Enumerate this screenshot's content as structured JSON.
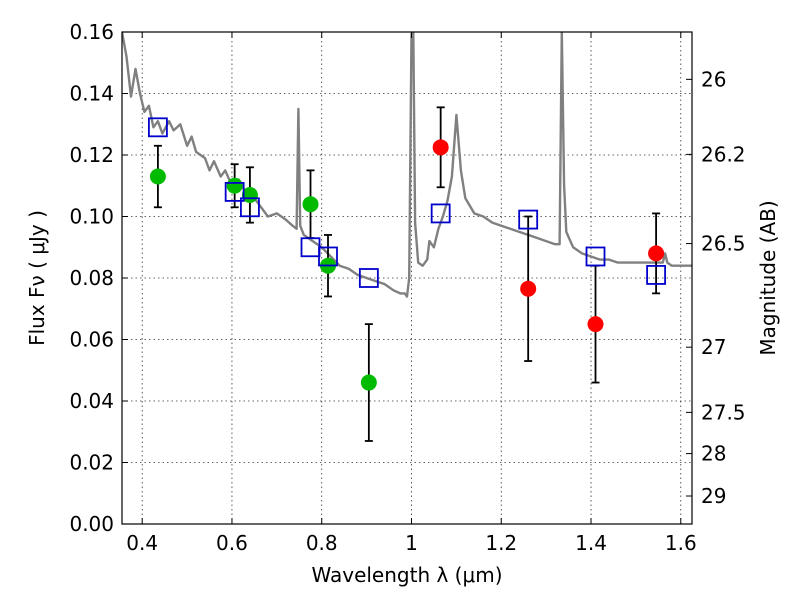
{
  "chart_data": {
    "type": "scatter",
    "xlabel": "Wavelength  λ (μm)",
    "ylabel": "Flux  Fν  ( μJy )",
    "y2label": "Magnitude (AB)",
    "xlim": [
      0.355,
      1.625
    ],
    "ylim": [
      0.0,
      0.16
    ],
    "x_ticks": [
      0.4,
      0.6,
      0.8,
      1.0,
      1.2,
      1.4,
      1.6
    ],
    "x_tick_labels": [
      "0.4",
      "0.6",
      "0.8",
      "1",
      "1.2",
      "1.4",
      "1.6"
    ],
    "y_ticks": [
      0.0,
      0.02,
      0.04,
      0.06,
      0.08,
      0.1,
      0.12,
      0.14,
      0.16
    ],
    "y_tick_labels": [
      "0.00",
      "0.02",
      "0.04",
      "0.06",
      "0.08",
      "0.10",
      "0.12",
      "0.14",
      "0.16"
    ],
    "y2_ticks": [
      {
        "label": "26",
        "flux": 0.1446
      },
      {
        "label": "26.2",
        "flux": 0.1202
      },
      {
        "label": "26.5",
        "flux": 0.0912
      },
      {
        "label": "27",
        "flux": 0.0575
      },
      {
        "label": "27.5",
        "flux": 0.0363
      },
      {
        "label": "28",
        "flux": 0.0229
      },
      {
        "label": "29",
        "flux": 0.0091
      }
    ],
    "grid": true,
    "colors": {
      "green": "#00bb00",
      "red": "#ff0000",
      "model_box": "#0000cc",
      "sed": "#808080",
      "errorbar": "#000000"
    },
    "series": [
      {
        "marker": "circle-green",
        "x": [
          0.435,
          0.606,
          0.64,
          0.775,
          0.814,
          0.905
        ],
        "y": [
          0.113,
          0.11,
          0.107,
          0.104,
          0.084,
          0.046
        ],
        "err": [
          0.01,
          0.007,
          0.009,
          0.011,
          0.01,
          0.019
        ]
      },
      {
        "marker": "circle-red",
        "x": [
          1.065,
          1.26,
          1.41,
          1.545
        ],
        "y": [
          0.1225,
          0.0765,
          0.065,
          0.088
        ],
        "err": [
          0.013,
          0.0235,
          0.019,
          0.013
        ]
      },
      {
        "marker": "square-blue",
        "x": [
          0.435,
          0.606,
          0.64,
          0.775,
          0.814,
          0.905,
          1.065,
          1.26,
          1.41,
          1.545
        ],
        "y": [
          0.129,
          0.108,
          0.103,
          0.09,
          0.087,
          0.08,
          0.101,
          0.099,
          0.087,
          0.081
        ]
      }
    ],
    "sed_curve": [
      [
        0.355,
        0.16
      ],
      [
        0.365,
        0.152
      ],
      [
        0.375,
        0.139
      ],
      [
        0.385,
        0.148
      ],
      [
        0.395,
        0.14
      ],
      [
        0.405,
        0.134
      ],
      [
        0.415,
        0.136
      ],
      [
        0.425,
        0.129
      ],
      [
        0.435,
        0.131
      ],
      [
        0.445,
        0.127
      ],
      [
        0.46,
        0.131
      ],
      [
        0.47,
        0.128
      ],
      [
        0.485,
        0.13
      ],
      [
        0.5,
        0.123
      ],
      [
        0.51,
        0.126
      ],
      [
        0.52,
        0.121
      ],
      [
        0.53,
        0.12
      ],
      [
        0.54,
        0.119
      ],
      [
        0.55,
        0.115
      ],
      [
        0.56,
        0.118
      ],
      [
        0.575,
        0.113
      ],
      [
        0.585,
        0.115
      ],
      [
        0.6,
        0.11
      ],
      [
        0.615,
        0.112
      ],
      [
        0.63,
        0.108
      ],
      [
        0.65,
        0.106
      ],
      [
        0.665,
        0.103
      ],
      [
        0.68,
        0.1
      ],
      [
        0.7,
        0.101
      ],
      [
        0.72,
        0.099
      ],
      [
        0.735,
        0.097
      ],
      [
        0.744,
        0.096
      ],
      [
        0.748,
        0.135
      ],
      [
        0.752,
        0.097
      ],
      [
        0.76,
        0.094
      ],
      [
        0.78,
        0.092
      ],
      [
        0.8,
        0.09
      ],
      [
        0.82,
        0.087
      ],
      [
        0.84,
        0.084
      ],
      [
        0.86,
        0.083
      ],
      [
        0.88,
        0.081
      ],
      [
        0.9,
        0.08
      ],
      [
        0.92,
        0.079
      ],
      [
        0.94,
        0.078
      ],
      [
        0.96,
        0.076
      ],
      [
        0.975,
        0.075
      ],
      [
        0.985,
        0.075
      ],
      [
        0.99,
        0.074
      ],
      [
        0.995,
        0.08
      ],
      [
        1.0,
        0.1595
      ],
      [
        1.004,
        0.16
      ],
      [
        1.008,
        0.098
      ],
      [
        1.015,
        0.085
      ],
      [
        1.025,
        0.084
      ],
      [
        1.035,
        0.086
      ],
      [
        1.04,
        0.092
      ],
      [
        1.05,
        0.09
      ],
      [
        1.06,
        0.096
      ],
      [
        1.07,
        0.1
      ],
      [
        1.08,
        0.105
      ],
      [
        1.09,
        0.113
      ],
      [
        1.1,
        0.133
      ],
      [
        1.11,
        0.115
      ],
      [
        1.12,
        0.106
      ],
      [
        1.14,
        0.101
      ],
      [
        1.16,
        0.1
      ],
      [
        1.18,
        0.098
      ],
      [
        1.2,
        0.097
      ],
      [
        1.22,
        0.096
      ],
      [
        1.24,
        0.095
      ],
      [
        1.26,
        0.094
      ],
      [
        1.28,
        0.093
      ],
      [
        1.3,
        0.092
      ],
      [
        1.32,
        0.091
      ],
      [
        1.33,
        0.091
      ],
      [
        1.335,
        0.16
      ],
      [
        1.34,
        0.11
      ],
      [
        1.345,
        0.095
      ],
      [
        1.36,
        0.09
      ],
      [
        1.38,
        0.088
      ],
      [
        1.4,
        0.087
      ],
      [
        1.42,
        0.086
      ],
      [
        1.44,
        0.086
      ],
      [
        1.46,
        0.085
      ],
      [
        1.48,
        0.085
      ],
      [
        1.5,
        0.085
      ],
      [
        1.52,
        0.085
      ],
      [
        1.54,
        0.085
      ],
      [
        1.56,
        0.085
      ],
      [
        1.565,
        0.088
      ],
      [
        1.57,
        0.085
      ],
      [
        1.58,
        0.084
      ],
      [
        1.6,
        0.084
      ],
      [
        1.625,
        0.084
      ]
    ]
  }
}
